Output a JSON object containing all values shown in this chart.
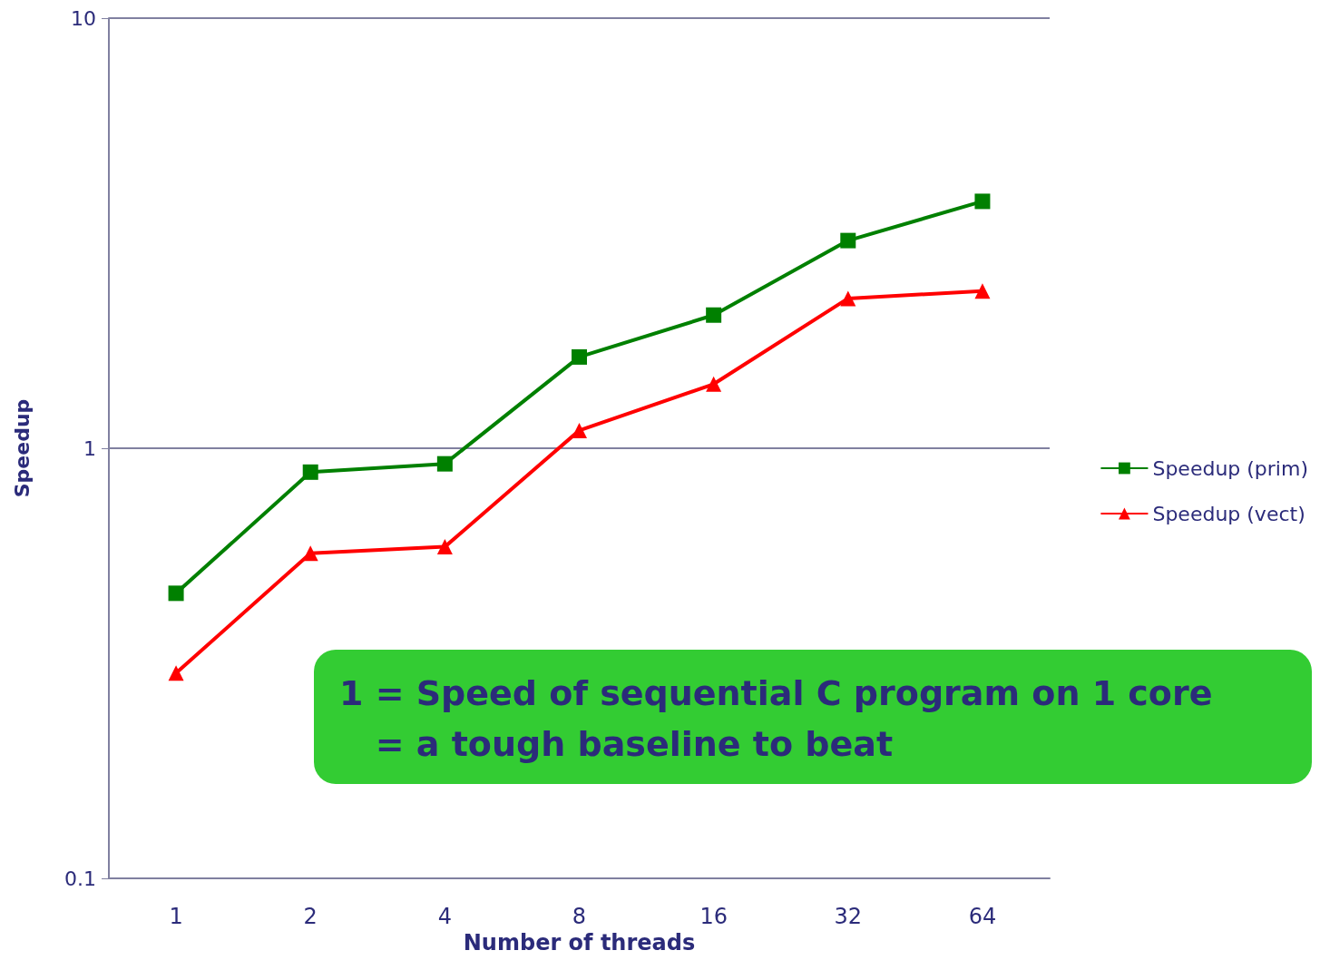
{
  "chart_data": {
    "type": "line",
    "xlabel": "Number of threads",
    "ylabel": "Speedup",
    "categories": [
      "1",
      "2",
      "4",
      "8",
      "16",
      "32",
      "64"
    ],
    "series": [
      {
        "name": "Speedup (prim)",
        "color": "#008000",
        "marker": "square",
        "values": [
          0.46,
          0.88,
          0.92,
          1.63,
          2.04,
          3.04,
          3.75
        ]
      },
      {
        "name": "Speedup (vect)",
        "color": "#ff0000",
        "marker": "triangle",
        "values": [
          0.3,
          0.57,
          0.59,
          1.1,
          1.41,
          2.23,
          2.32
        ]
      }
    ],
    "log": "y",
    "ylim": [
      0.1,
      10
    ],
    "yticks": [
      0.1,
      1,
      10
    ],
    "grid": "y",
    "legend": "right",
    "annotations": [
      "1 = Speed of sequential C program on 1 core\n   = a tough baseline to beat"
    ]
  }
}
